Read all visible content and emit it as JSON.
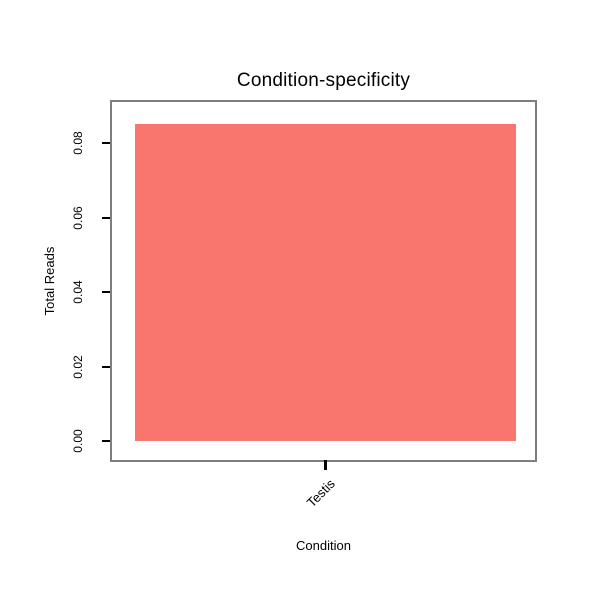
{
  "figure": {
    "background": "#ffffff"
  },
  "chart_data": {
    "type": "bar",
    "title": "Condition-specificity",
    "xlabel": "Condition",
    "ylabel": "Total Reads",
    "categories": [
      "Testis"
    ],
    "values": [
      0.085
    ],
    "ylim": [
      -0.005,
      0.091
    ],
    "yticks": [
      0,
      0.02,
      0.04,
      0.06,
      0.08
    ],
    "ytick_labels": [
      "0.00",
      "0.02",
      "0.04",
      "0.06",
      "0.08"
    ],
    "bar_color": "#F8766D",
    "box_color": "#7E7E7E",
    "tick_color": "#000000",
    "grid": false,
    "legend": "none"
  }
}
